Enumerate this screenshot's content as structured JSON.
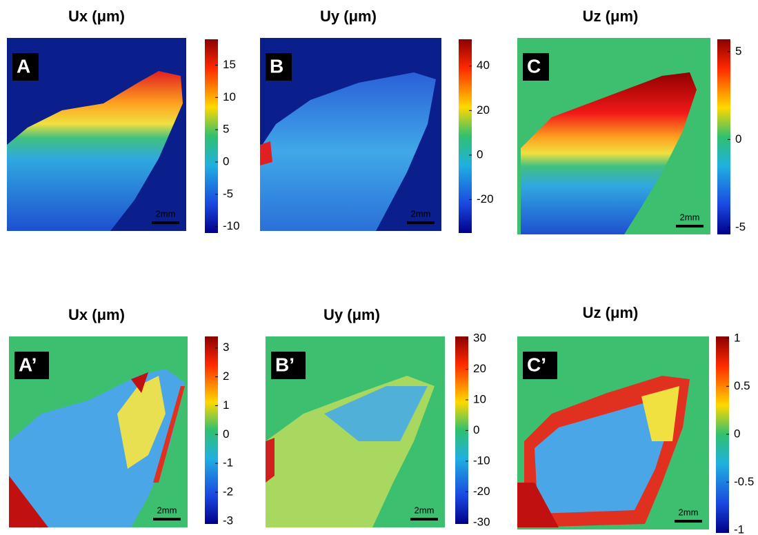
{
  "chart_data": [
    {
      "type": "heatmap",
      "title": "Ux (μm)",
      "panel_label": "A",
      "scale_bar": "2mm",
      "clim": [
        -11,
        19
      ],
      "cticks": [
        15,
        10,
        5,
        0,
        -5,
        -10
      ]
    },
    {
      "type": "heatmap",
      "title": "Uy (μm)",
      "panel_label": "B",
      "scale_bar": "2mm",
      "clim": [
        -35,
        52
      ],
      "cticks": [
        40,
        20,
        0,
        -20
      ]
    },
    {
      "type": "heatmap",
      "title": "Uz (μm)",
      "panel_label": "C",
      "scale_bar": "2mm",
      "clim": [
        -5.4,
        5.7
      ],
      "cticks": [
        5,
        0,
        -5
      ]
    },
    {
      "type": "heatmap",
      "title": "Ux (μm)",
      "panel_label": "A’",
      "scale_bar": "2mm",
      "clim": [
        -3.1,
        3.4
      ],
      "cticks": [
        3,
        2,
        1,
        0,
        -1,
        -2,
        -3
      ]
    },
    {
      "type": "heatmap",
      "title": "Uy (μm)",
      "panel_label": "B’",
      "scale_bar": "2mm",
      "clim": [
        -30.5,
        30.7
      ],
      "cticks": [
        30,
        20,
        10,
        0,
        -10,
        -20,
        -30
      ]
    },
    {
      "type": "heatmap",
      "title": "Uz (μm)",
      "panel_label": "C’",
      "scale_bar": "2mm",
      "clim": [
        -1.03,
        1.02
      ],
      "cticks": [
        1,
        0.5,
        0,
        -0.5,
        -1
      ]
    }
  ]
}
